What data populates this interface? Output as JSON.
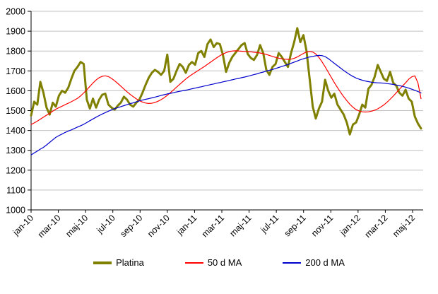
{
  "chart_data": {
    "type": "line",
    "title": "",
    "xlabel": "",
    "ylabel": "",
    "ylim": [
      1000,
      2000
    ],
    "y_tick_step": 100,
    "y_tick_labels": [
      "1000",
      "1100",
      "1200",
      "1300",
      "1400",
      "1500",
      "1600",
      "1700",
      "1800",
      "1900",
      "2000"
    ],
    "x_tick_labels": [
      "jan-10",
      "mar-10",
      "maj-10",
      "jul-10",
      "sep-10",
      "nov-10",
      "jan-11",
      "mar-11",
      "maj-11",
      "jul-11",
      "sep-11",
      "nov-11",
      "jan-12",
      "mar-12",
      "maj-12"
    ],
    "grid": true,
    "gridline_color": "#c0c0c0",
    "axis_color": "#000000",
    "legend_position": "bottom",
    "sampling": "weekly points, jan 2010 to late may 2012",
    "series": [
      {
        "name": "Platina",
        "color": "#808000",
        "stroke_width": 3,
        "values": [
          1475,
          1545,
          1530,
          1645,
          1590,
          1515,
          1480,
          1540,
          1520,
          1575,
          1600,
          1590,
          1615,
          1660,
          1700,
          1720,
          1745,
          1735,
          1555,
          1510,
          1560,
          1515,
          1555,
          1580,
          1585,
          1530,
          1515,
          1505,
          1525,
          1540,
          1570,
          1555,
          1530,
          1520,
          1540,
          1555,
          1590,
          1630,
          1665,
          1690,
          1705,
          1695,
          1680,
          1700,
          1782,
          1645,
          1660,
          1700,
          1735,
          1720,
          1690,
          1730,
          1745,
          1731,
          1790,
          1800,
          1770,
          1835,
          1858,
          1820,
          1840,
          1835,
          1780,
          1695,
          1740,
          1770,
          1790,
          1810,
          1830,
          1840,
          1785,
          1765,
          1755,
          1780,
          1830,
          1790,
          1705,
          1680,
          1720,
          1735,
          1790,
          1770,
          1745,
          1720,
          1790,
          1845,
          1915,
          1845,
          1880,
          1800,
          1660,
          1520,
          1460,
          1510,
          1545,
          1655,
          1600,
          1565,
          1585,
          1530,
          1505,
          1480,
          1440,
          1380,
          1430,
          1440,
          1480,
          1530,
          1515,
          1610,
          1630,
          1670,
          1730,
          1695,
          1660,
          1650,
          1695,
          1640,
          1625,
          1590,
          1575,
          1605,
          1560,
          1545,
          1470,
          1435,
          1410
        ]
      },
      {
        "name": "50 d MA",
        "color": "#ff0000",
        "stroke_width": 1.2,
        "values": [
          1430,
          1438,
          1447,
          1457,
          1467,
          1477,
          1487,
          1497,
          1507,
          1515,
          1522,
          1530,
          1537,
          1545,
          1553,
          1562,
          1574,
          1589,
          1605,
          1622,
          1639,
          1654,
          1666,
          1673,
          1675,
          1671,
          1662,
          1650,
          1637,
          1623,
          1609,
          1595,
          1582,
          1570,
          1559,
          1550,
          1543,
          1538,
          1536,
          1537,
          1541,
          1547,
          1555,
          1565,
          1577,
          1590,
          1604,
          1618,
          1632,
          1646,
          1659,
          1671,
          1682,
          1692,
          1702,
          1712,
          1722,
          1733,
          1744,
          1755,
          1766,
          1776,
          1785,
          1792,
          1797,
          1800,
          1801,
          1800,
          1799,
          1798,
          1797,
          1796,
          1794,
          1792,
          1790,
          1787,
          1783,
          1778,
          1773,
          1768,
          1764,
          1761,
          1759,
          1758,
          1759,
          1763,
          1770,
          1779,
          1788,
          1795,
          1798,
          1795,
          1785,
          1768,
          1746,
          1721,
          1694,
          1667,
          1641,
          1616,
          1592,
          1570,
          1550,
          1532,
          1517,
          1505,
          1498,
          1494,
          1493,
          1494,
          1497,
          1502,
          1509,
          1518,
          1529,
          1542,
          1557,
          1573,
          1590,
          1607,
          1624,
          1640,
          1658,
          1670,
          1675,
          1640,
          1560
        ]
      },
      {
        "name": "200 d MA",
        "color": "#0000cc",
        "stroke_width": 1.2,
        "values": [
          1277,
          1287,
          1296,
          1306,
          1315,
          1327,
          1340,
          1353,
          1365,
          1374,
          1382,
          1390,
          1397,
          1403,
          1410,
          1417,
          1424,
          1431,
          1440,
          1449,
          1458,
          1467,
          1475,
          1483,
          1490,
          1497,
          1504,
          1510,
          1515,
          1520,
          1525,
          1530,
          1535,
          1539,
          1544,
          1549,
          1553,
          1557,
          1560,
          1564,
          1568,
          1572,
          1576,
          1580,
          1584,
          1587,
          1590,
          1594,
          1597,
          1600,
          1603,
          1606,
          1610,
          1613,
          1617,
          1620,
          1624,
          1627,
          1631,
          1634,
          1638,
          1641,
          1645,
          1648,
          1652,
          1655,
          1659,
          1662,
          1666,
          1669,
          1673,
          1677,
          1681,
          1685,
          1690,
          1694,
          1699,
          1703,
          1707,
          1712,
          1717,
          1722,
          1727,
          1732,
          1738,
          1744,
          1750,
          1756,
          1761,
          1766,
          1770,
          1773,
          1776,
          1778,
          1777,
          1772,
          1762,
          1750,
          1738,
          1726,
          1714,
          1702,
          1691,
          1681,
          1672,
          1664,
          1658,
          1653,
          1649,
          1646,
          1643,
          1641,
          1640,
          1639,
          1638,
          1636,
          1634,
          1632,
          1629,
          1626,
          1622,
          1618,
          1613,
          1608,
          1602,
          1596,
          1589
        ]
      }
    ]
  },
  "legend": {
    "items": [
      {
        "label": "Platina"
      },
      {
        "label": "50 d MA"
      },
      {
        "label": "200 d MA"
      }
    ]
  }
}
